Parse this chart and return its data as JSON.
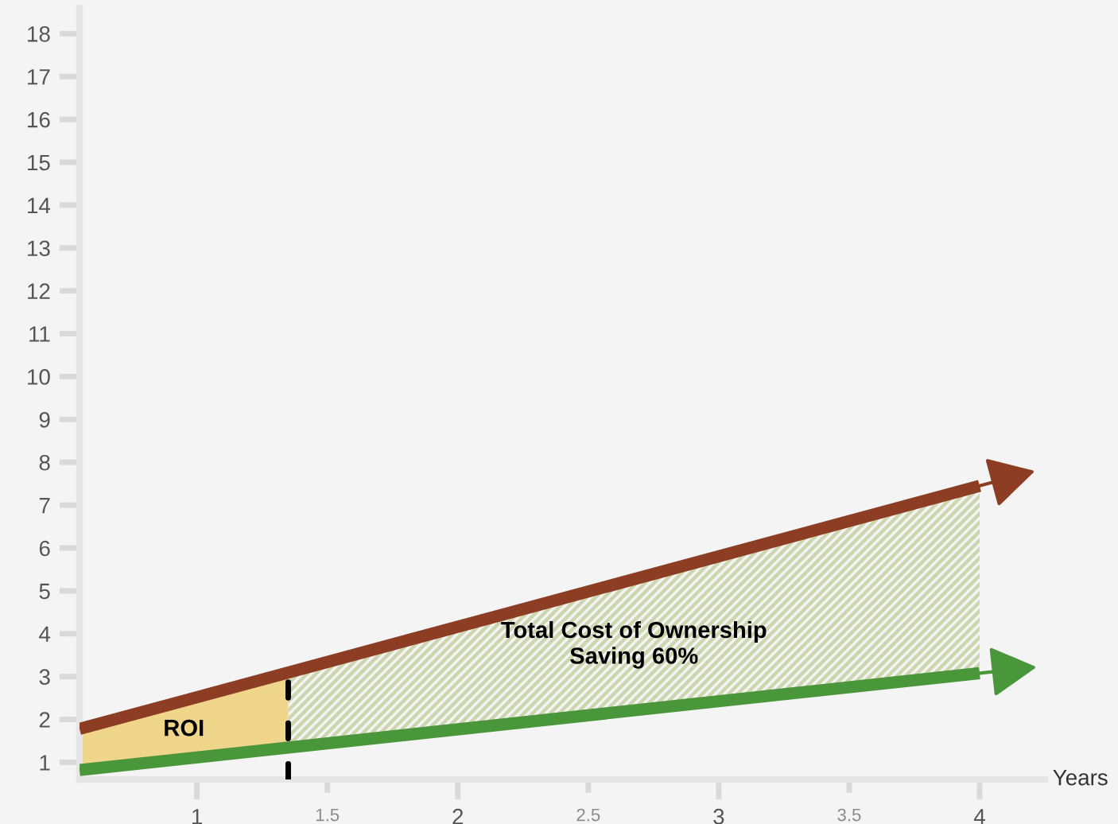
{
  "chart_data": {
    "type": "line",
    "xlabel": "Years",
    "x": [
      0.55,
      4
    ],
    "series": [
      {
        "type": "area",
        "x": [
          0.55,
          1.35
        ],
        "values": [
          null,
          null
        ],
        "lower": [
          0.82,
          1.34
        ],
        "upper": [
          1.78,
          3.09
        ],
        "color": "#efd68a"
      },
      {
        "type": "area",
        "x": [
          1.35,
          4
        ],
        "values": [
          null,
          null
        ],
        "lower": [
          1.34,
          3.08
        ],
        "upper": [
          3.09,
          7.45
        ],
        "color": "#cdd6ae",
        "line_style": "solid"
      },
      {
        "color": "#8c3d24",
        "values": [
          1.78,
          7.45
        ]
      },
      {
        "color": "#4a963b",
        "values": [
          0.82,
          3.08
        ]
      }
    ],
    "xlim": [
      0.55,
      4.25
    ],
    "xticks": [
      1,
      1.5,
      2,
      2.5,
      3,
      3.5,
      4
    ],
    "ylim": [
      0.6,
      18.6
    ],
    "yticks": [
      1,
      2,
      3,
      4,
      5,
      6,
      7,
      8,
      9,
      10,
      11,
      12,
      13,
      14,
      15,
      16,
      17,
      18
    ],
    "ref_lines": [
      {
        "axis": "x",
        "value": 1.35,
        "color": "#000000",
        "line_style": "dashed"
      }
    ],
    "annotations": [
      "ROI",
      "Total Cost of Ownership\nSaving 60%"
    ]
  }
}
